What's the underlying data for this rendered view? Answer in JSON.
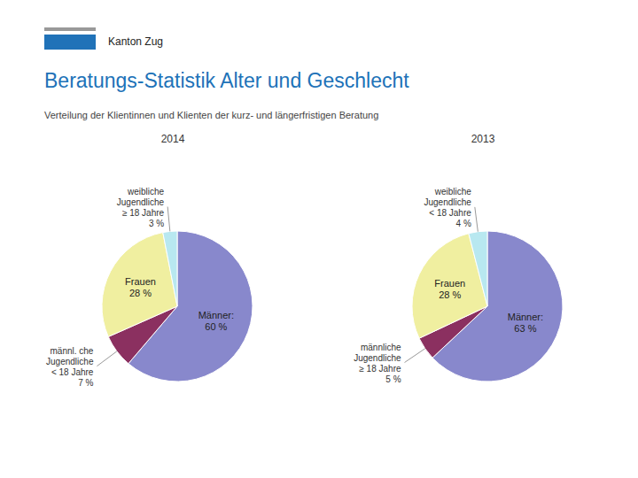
{
  "title": "Beratungs-Statistik Alter und Geschlecht",
  "subtitle": "Verteilung der Klientinnen und Klienten der kurz- und längerfristigen Beratung",
  "annotations": [
    "Kanton Zug"
  ],
  "title_color": "#2072B8",
  "subtitle_color": "#444444",
  "chart_data": [
    {
      "type": "pie",
      "title": "2014",
      "values": [
        60,
        7,
        28,
        3
      ],
      "value_labels": [
        "Männer:\n60 %",
        "männl. che\nJugendliche\n< 18 Jahre\n7 %",
        "Frauen\n28 %",
        "weibliche\nJugendliche\n≥ 18 Jahre\n3 %"
      ],
      "colors": [
        "#8888CC",
        "#8B3060",
        "#F0EFA0",
        "#B8E8F0"
      ]
    },
    {
      "type": "pie",
      "title": "2013",
      "values": [
        63,
        5,
        28,
        4
      ],
      "value_labels": [
        "Männer:\n63 %",
        "männliche\nJugendliche\n≥ 18 Jahre\n5 %",
        "Frauen\n28 %",
        "weibliche\nJugendliche\n< 18 Jahre\n4 %"
      ],
      "colors": [
        "#8888CC",
        "#8B3060",
        "#F0EFA0",
        "#B8E8F0"
      ]
    }
  ]
}
